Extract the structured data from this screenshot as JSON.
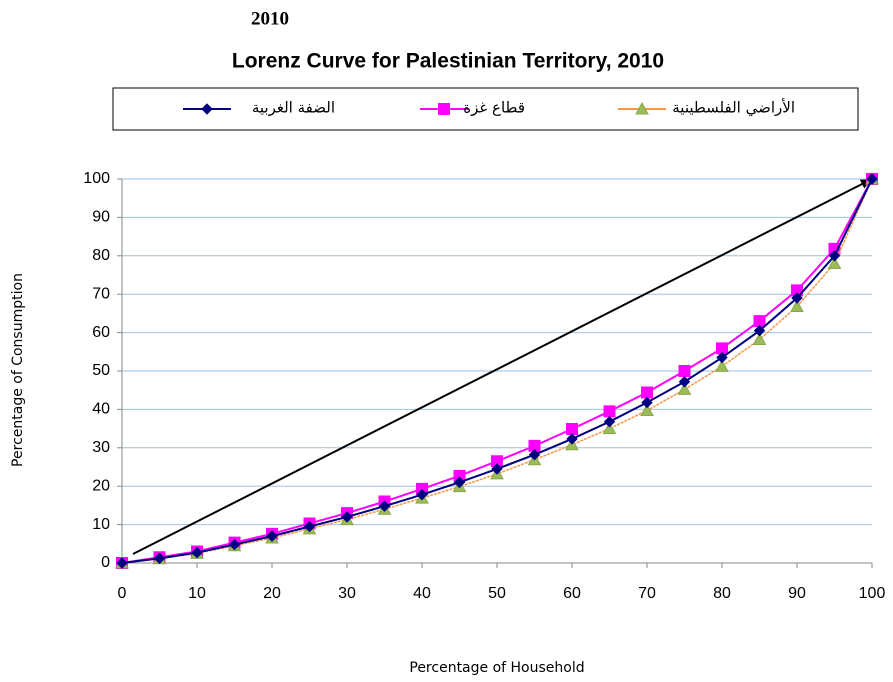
{
  "chart_data": {
    "type": "line",
    "supertitle": "2010",
    "title": "Lorenz Curve for Palestinian Territory, 2010",
    "x_label": "Percentage of Household",
    "y_label": "Percentage of Consumption",
    "x": [
      0,
      5,
      10,
      15,
      20,
      25,
      30,
      35,
      40,
      45,
      50,
      55,
      60,
      65,
      70,
      75,
      80,
      85,
      90,
      95,
      100
    ],
    "series": [
      {
        "name": "الضفة الغربية",
        "color": "#000080",
        "marker": "diamond",
        "marker_color": "#000080",
        "values": [
          0,
          1.2,
          2.7,
          4.8,
          7,
          9.5,
          12,
          14.8,
          17.8,
          21,
          24.5,
          28.2,
          32.3,
          36.8,
          41.8,
          47.2,
          53.5,
          60.5,
          69,
          80,
          100
        ]
      },
      {
        "name": "قطاع غزة",
        "color": "#ff00ff",
        "marker": "square",
        "marker_color": "#ff00ff",
        "values": [
          0,
          1.5,
          3,
          5.3,
          7.6,
          10.3,
          13,
          16,
          19.3,
          22.7,
          26.5,
          30.5,
          34.9,
          39.5,
          44.4,
          50,
          55.9,
          63,
          71,
          81.8,
          100
        ]
      },
      {
        "name": "الأراضي الفلسطينية",
        "color": "#f79646",
        "marker": "triangle",
        "marker_color": "#9bbb59",
        "values": [
          0,
          1.1,
          2.5,
          4.5,
          6.5,
          8.9,
          11.3,
          14,
          16.9,
          19.9,
          23.2,
          26.9,
          30.8,
          35,
          39.7,
          45.2,
          51.2,
          58.2,
          66.8,
          78,
          100
        ]
      }
    ],
    "xlim": [
      0,
      100
    ],
    "xticks": [
      0,
      10,
      20,
      30,
      40,
      50,
      60,
      70,
      80,
      90,
      100
    ],
    "ylim": [
      0,
      100
    ],
    "yticks": [
      0,
      10,
      20,
      30,
      40,
      50,
      60,
      70,
      80,
      90,
      100
    ],
    "grid": true,
    "legend": "top"
  }
}
